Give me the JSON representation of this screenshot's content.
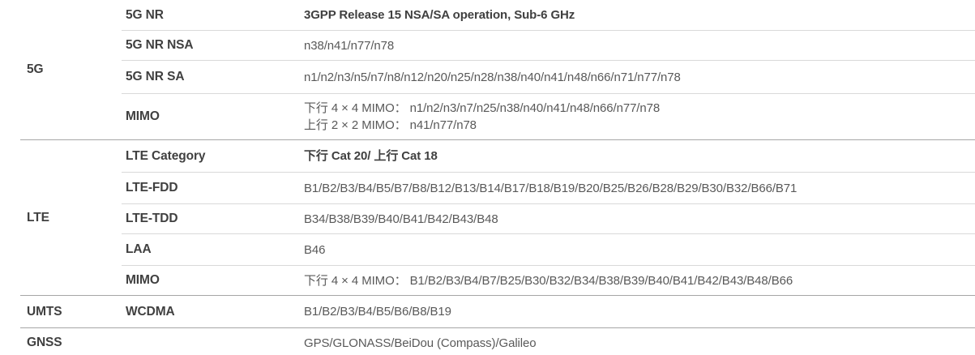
{
  "colors": {
    "background": "#ffffff",
    "label_text": "#404040",
    "value_text": "#595959",
    "group_divider": "#a6a6a6",
    "row_divider": "#d9d9d9"
  },
  "groups": [
    {
      "category": "5G",
      "rows": [
        {
          "label": "5G NR",
          "value": "3GPP Release 15 NSA/SA operation, Sub-6 GHz"
        },
        {
          "label": "5G NR NSA",
          "value": "n38/n41/n77/n78"
        },
        {
          "label": "5G NR SA",
          "value": "n1/n2/n3/n5/n7/n8/n12/n20/n25/n28/n38/n40/n41/n48/n66/n71/n77/n78"
        },
        {
          "label": "MIMO",
          "value": "下行 4 × 4 MIMO： n1/n2/n3/n7/n25/n38/n40/n41/n48/n66/n77/n78",
          "value2": "上行 2 × 2 MIMO： n41/n77/n78"
        }
      ]
    },
    {
      "category": "LTE",
      "rows": [
        {
          "label": "LTE Category",
          "value": "下行 Cat 20/ 上行 Cat 18"
        },
        {
          "label": "LTE-FDD",
          "value": "B1/B2/B3/B4/B5/B7/B8/B12/B13/B14/B17/B18/B19/B20/B25/B26/B28/B29/B30/B32/B66/B71"
        },
        {
          "label": "LTE-TDD",
          "value": "B34/B38/B39/B40/B41/B42/B43/B48"
        },
        {
          "label": "LAA",
          "value": "B46"
        },
        {
          "label": "MIMO",
          "value": "下行 4 × 4 MIMO： B1/B2/B3/B4/B7/B25/B30/B32/B34/B38/B39/B40/B41/B42/B43/B48/B66"
        }
      ]
    },
    {
      "category": "UMTS",
      "rows": [
        {
          "label": "WCDMA",
          "value": "B1/B2/B3/B4/B5/B6/B8/B19"
        }
      ]
    },
    {
      "category": "GNSS",
      "rows": [
        {
          "label": "",
          "value": "GPS/GLONASS/BeiDou (Compass)/Galileo"
        }
      ]
    }
  ]
}
